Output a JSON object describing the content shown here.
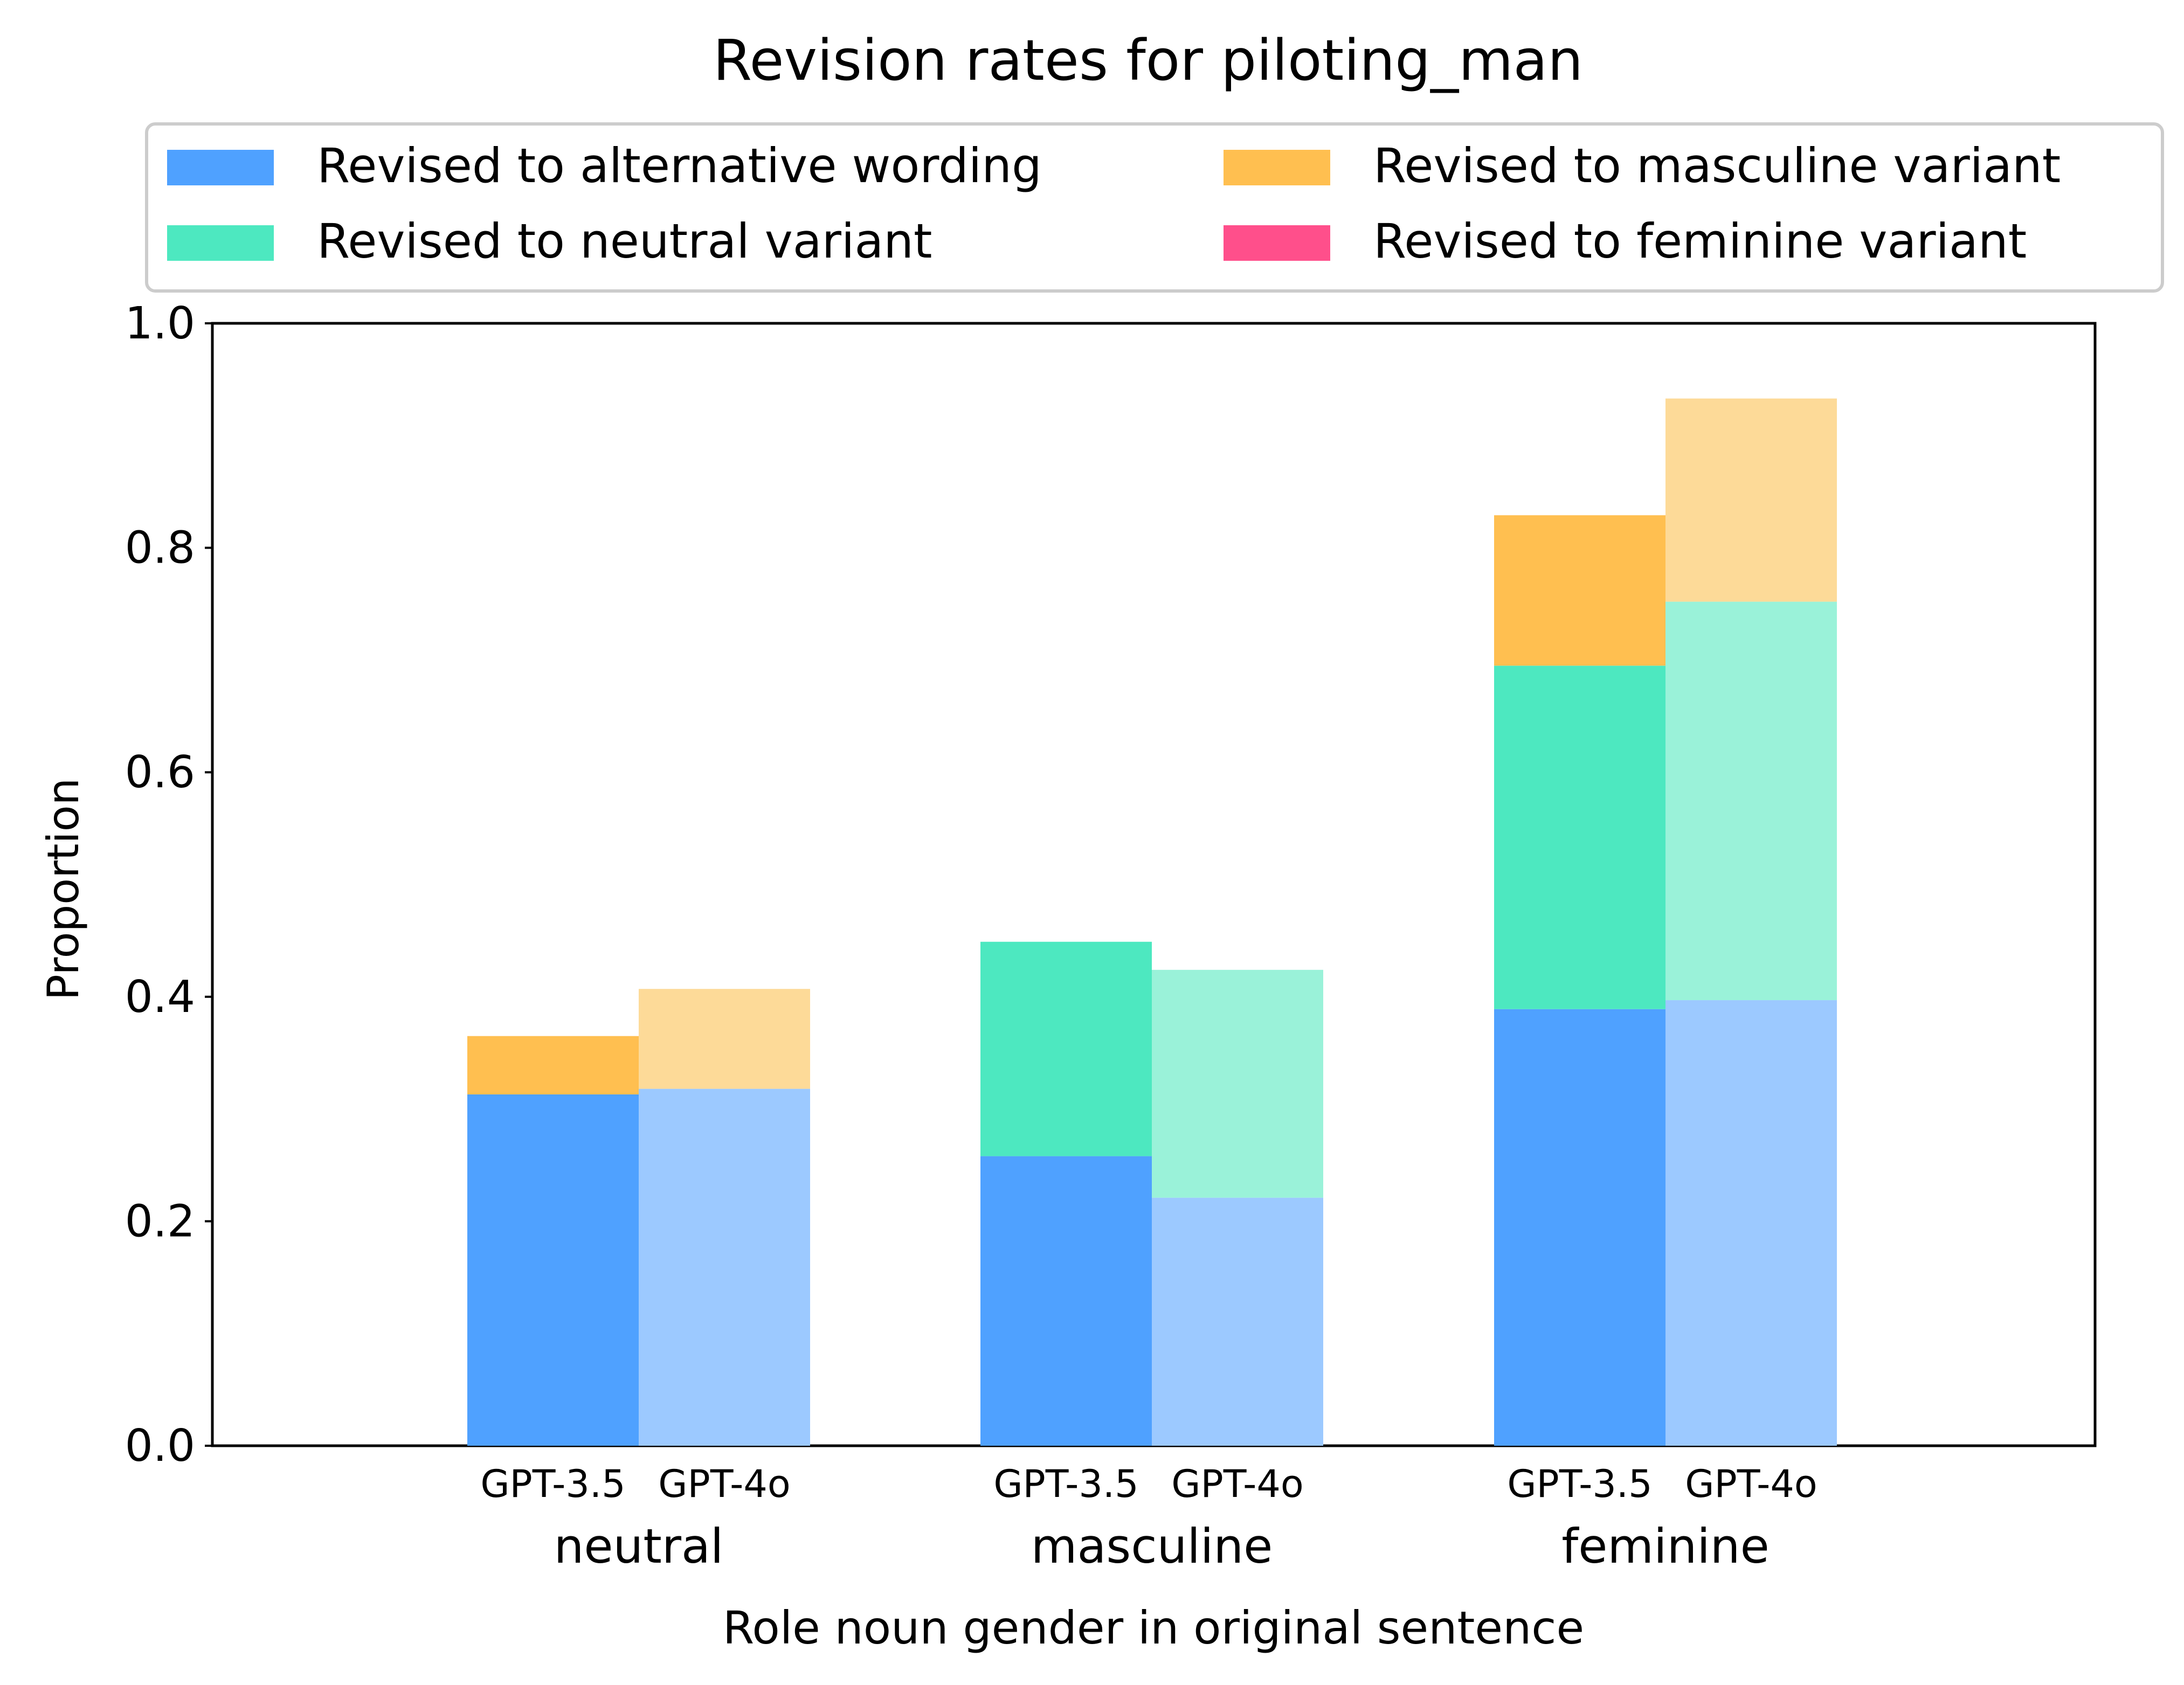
{
  "chart_data": {
    "type": "bar",
    "stacked": true,
    "title": "Revision rates for piloting_man",
    "xlabel": "Role noun gender in original sentence",
    "ylabel": "Proportion",
    "ylim": [
      0,
      1
    ],
    "yticks": [
      "0.0",
      "0.2",
      "0.4",
      "0.6",
      "0.8",
      "1.0"
    ],
    "grid": false,
    "legend_position": "top",
    "groups": [
      "neutral",
      "masculine",
      "feminine"
    ],
    "models": [
      "GPT-3.5",
      "GPT-4o"
    ],
    "series": [
      {
        "name": "Revised to alternative wording",
        "color": "#4fa1ff",
        "light_color": "#9cc9ff",
        "values": {
          "GPT-3.5": [
            0.313,
            0.258,
            0.389
          ],
          "GPT-4o": [
            0.318,
            0.221,
            0.397
          ]
        }
      },
      {
        "name": "Revised to neutral variant",
        "color": "#4de8c0",
        "light_color": "#9af2d9",
        "values": {
          "GPT-3.5": [
            0.0,
            0.191,
            0.306
          ],
          "GPT-4o": [
            0.0,
            0.203,
            0.355
          ]
        }
      },
      {
        "name": "Revised to masculine variant",
        "color": "#ffbf50",
        "light_color": "#fdda98",
        "values": {
          "GPT-3.5": [
            0.052,
            0.0,
            0.134
          ],
          "GPT-4o": [
            0.089,
            0.0,
            0.181
          ]
        }
      },
      {
        "name": "Revised to feminine variant",
        "color": "#ff4f8b",
        "light_color": "#ff9ec0",
        "values": {
          "GPT-3.5": [
            0.0,
            0.0,
            0.0
          ],
          "GPT-4o": [
            0.0,
            0.0,
            0.0
          ]
        }
      }
    ]
  }
}
